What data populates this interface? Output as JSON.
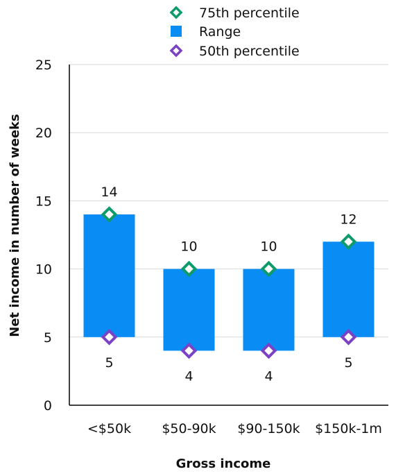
{
  "chart_data": {
    "type": "bar",
    "title": "",
    "xlabel": "Gross income",
    "ylabel": "Net income in number of weeks",
    "ylim": [
      0,
      25
    ],
    "yticks": [
      0,
      5,
      10,
      15,
      20,
      25
    ],
    "grid": true,
    "legend_position": "top",
    "categories": [
      "<$50k",
      "$50-90k",
      "$90-150k",
      "$150k-1m"
    ],
    "series": [
      {
        "name": "75th percentile",
        "marker": "diamond",
        "color": "#0e9b6b",
        "values": [
          14,
          10,
          10,
          12
        ]
      },
      {
        "name": "Range",
        "marker": "square",
        "color": "#0a8cf5",
        "low": [
          5,
          4,
          4,
          5
        ],
        "high": [
          14,
          10,
          10,
          12
        ]
      },
      {
        "name": "50th percentile",
        "marker": "diamond",
        "color": "#7b42c5",
        "values": [
          5,
          4,
          4,
          5
        ]
      }
    ],
    "data_labels": {
      "top": [
        "14",
        "10",
        "10",
        "12"
      ],
      "bottom": [
        "5",
        "4",
        "4",
        "5"
      ]
    }
  },
  "colors": {
    "grid": "#d9d9d9",
    "axis": "#000000",
    "text": "#111111"
  }
}
